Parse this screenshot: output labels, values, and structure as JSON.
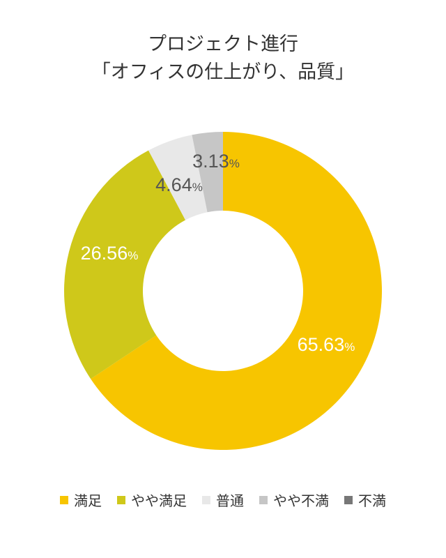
{
  "title": {
    "line1": "プロジェクト進行",
    "line2": "「オフィスの仕上がり、品質」"
  },
  "chart_data": {
    "type": "pie",
    "donut": true,
    "categories": [
      "満足",
      "やや満足",
      "普通",
      "やや不満",
      "不満"
    ],
    "values": [
      65.63,
      26.56,
      4.64,
      3.13,
      0
    ],
    "colors": [
      "#F7C500",
      "#CFC81A",
      "#E8E8E8",
      "#C6C6C6",
      "#777777"
    ],
    "data_labels": [
      "65.63",
      "26.56",
      "4.64",
      "3.13",
      ""
    ],
    "label_colors": [
      "#ffffff",
      "#ffffff",
      "#555555",
      "#555555",
      "#555555"
    ],
    "unit": "%",
    "legend_position": "bottom"
  }
}
